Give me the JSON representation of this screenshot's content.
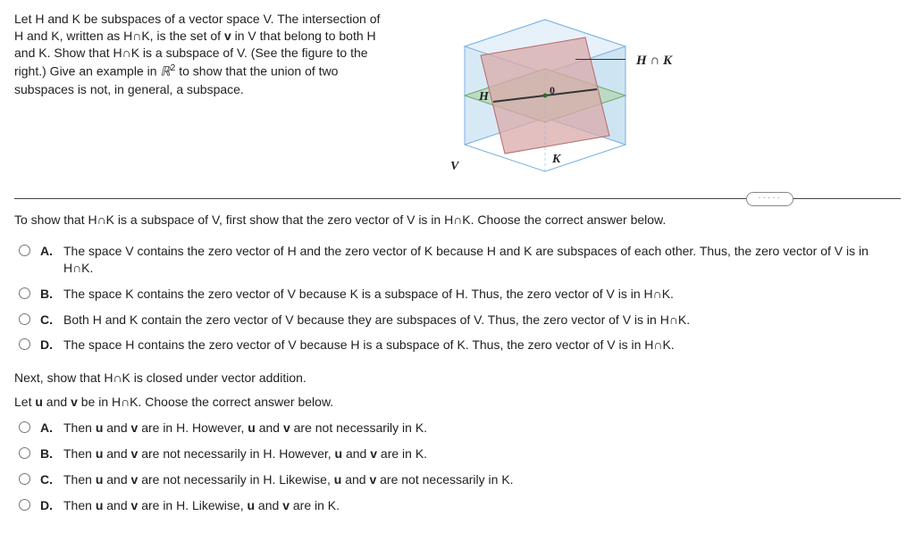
{
  "problem": {
    "statement_html": "Let H and K be subspaces of a vector space V. The intersection of H and K, written as H∩K, is the set of <span class='bold'>v</span> in V that belong to both H and K. Show that H∩K is a subspace of V. (See the figure to the right.) Give an example in <span class='serif-it'>ℝ</span><sup>2</sup> to show that the union of two subspaces is not, in general, a subspace."
  },
  "figure": {
    "label_hnk": "H ∩ K",
    "label_H": "H",
    "label_K": "K",
    "label_V": "V",
    "label_zero": "0",
    "colors": {
      "cube_edge": "#7ab2e0",
      "cube_face": "#d8e9f6",
      "plane_green_fill": "#b7d7b7",
      "plane_green_edge": "#6ba96b",
      "plane_red_fill": "#d9aaaa",
      "plane_red_edge": "#b46a6a",
      "intersection_line": "#333333"
    }
  },
  "divider": {
    "pill_text": "·····"
  },
  "question1": {
    "instruction": "To show that H∩K is a subspace of V, first show that the zero vector of V is in H∩K. Choose the correct answer below.",
    "choices": {
      "A": "The space V contains the zero vector of H and the zero vector of K because H and K are subspaces of each other. Thus, the zero vector of V is in H∩K.",
      "B": "The space K contains the zero vector of V because K is a subspace of H. Thus, the zero vector of V is in H∩K.",
      "C": "Both H and K contain the zero vector of V because they are subspaces of V. Thus, the zero vector of V is in H∩K.",
      "D": "The space H contains the zero vector of V because H is a subspace of K. Thus, the zero vector of V is in H∩K."
    }
  },
  "question2": {
    "subhead1": "Next, show that H∩K is closed under vector addition.",
    "subhead2_html": "Let <span class='bold'>u</span> and <span class='bold'>v</span> be in H∩K. Choose the correct answer below.",
    "choices": {
      "A_html": "Then <span class='bold'>u</span> and <span class='bold'>v</span> are in H. However, <span class='bold'>u</span> and <span class='bold'>v</span> are not necessarily in K.",
      "B_html": "Then <span class='bold'>u</span> and <span class='bold'>v</span> are not necessarily in H. However, <span class='bold'>u</span> and <span class='bold'>v</span> are in K.",
      "C_html": "Then <span class='bold'>u</span> and <span class='bold'>v</span> are not necessarily in H. Likewise, <span class='bold'>u</span> and <span class='bold'>v</span> are not necessarily in K.",
      "D_html": "Then <span class='bold'>u</span> and <span class='bold'>v</span> are in H. Likewise, <span class='bold'>u</span> and <span class='bold'>v</span> are in K."
    }
  }
}
